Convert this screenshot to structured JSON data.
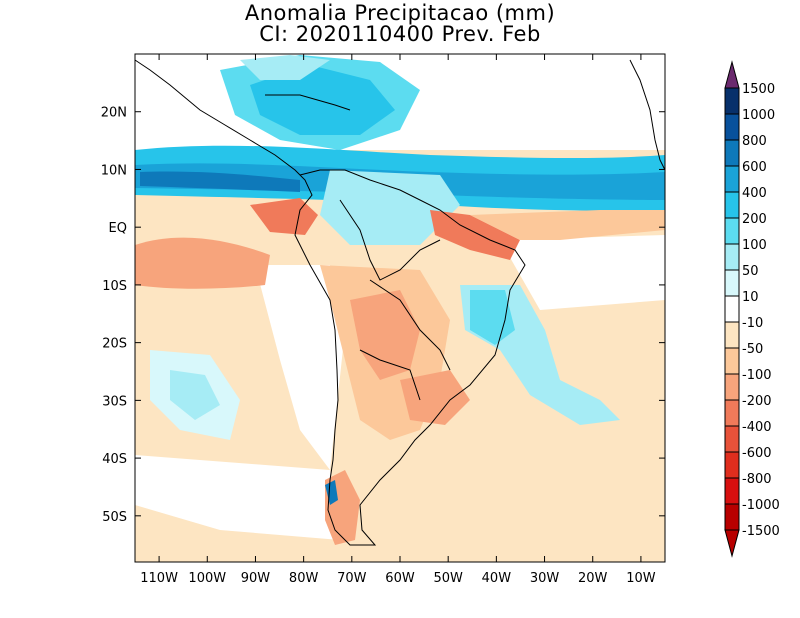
{
  "title": {
    "line1": "Anomalia Precipitacao (mm)",
    "line2": "CI: 2020110400 Prev. Feb"
  },
  "map": {
    "lon_range": [
      -115,
      -5
    ],
    "lat_range": [
      -58,
      30
    ],
    "lon_ticks": [
      {
        "value": -110,
        "label": "110W"
      },
      {
        "value": -100,
        "label": "100W"
      },
      {
        "value": -90,
        "label": "90W"
      },
      {
        "value": -80,
        "label": "80W"
      },
      {
        "value": -70,
        "label": "70W"
      },
      {
        "value": -60,
        "label": "60W"
      },
      {
        "value": -50,
        "label": "50W"
      },
      {
        "value": -40,
        "label": "40W"
      },
      {
        "value": -30,
        "label": "30W"
      },
      {
        "value": -20,
        "label": "20W"
      },
      {
        "value": -10,
        "label": "10W"
      }
    ],
    "lat_ticks": [
      {
        "value": 20,
        "label": "20N"
      },
      {
        "value": 10,
        "label": "10N"
      },
      {
        "value": 0,
        "label": "EQ"
      },
      {
        "value": -10,
        "label": "10S"
      },
      {
        "value": -20,
        "label": "20S"
      },
      {
        "value": -30,
        "label": "30S"
      },
      {
        "value": -40,
        "label": "40S"
      },
      {
        "value": -50,
        "label": "50S"
      }
    ]
  },
  "colorbar": {
    "labels": [
      "1500",
      "1000",
      "800",
      "600",
      "400",
      "200",
      "100",
      "50",
      "10",
      "-10",
      "-50",
      "-100",
      "-200",
      "-400",
      "-600",
      "-800",
      "-1000",
      "-1500"
    ],
    "colors": [
      "#6b2a6e",
      "#07306b",
      "#08519c",
      "#0e79ba",
      "#1aa3d8",
      "#27c4ea",
      "#5cdcf0",
      "#a6ecf5",
      "#d8f8fb",
      "#ffffff",
      "#fde5c2",
      "#fcc89a",
      "#f7a47c",
      "#f07a5a",
      "#e8523a",
      "#e02e1e",
      "#d81010",
      "#b80000"
    ]
  },
  "palette": {
    "land_dry": "#f7c9a4",
    "ocean_wet": "#1aa3d8"
  }
}
